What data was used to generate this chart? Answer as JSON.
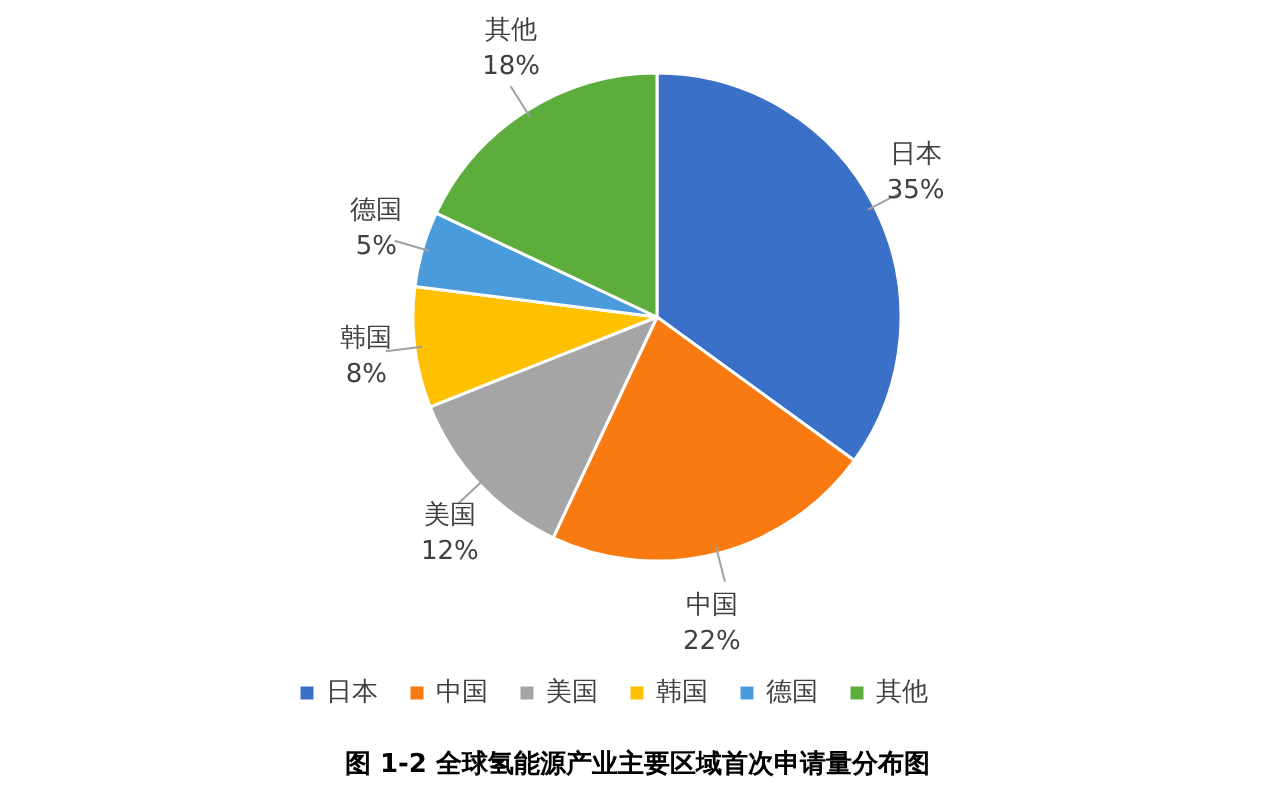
{
  "chart_data": {
    "type": "pie",
    "title": "图 1-2  全球氢能源产业主要区域首次申请量分布图",
    "categories": [
      "日本",
      "中国",
      "美国",
      "韩国",
      "德国",
      "其他"
    ],
    "values": [
      35,
      22,
      12,
      8,
      5,
      18
    ],
    "colors": [
      "#3a70c8",
      "#f97a10",
      "#a5a5a5",
      "#ffc000",
      "#4a9bdc",
      "#5cad3c"
    ],
    "value_labels": [
      "35%",
      "22%",
      "12%",
      "8%",
      "5%",
      "18%"
    ],
    "legend": "bottom"
  }
}
